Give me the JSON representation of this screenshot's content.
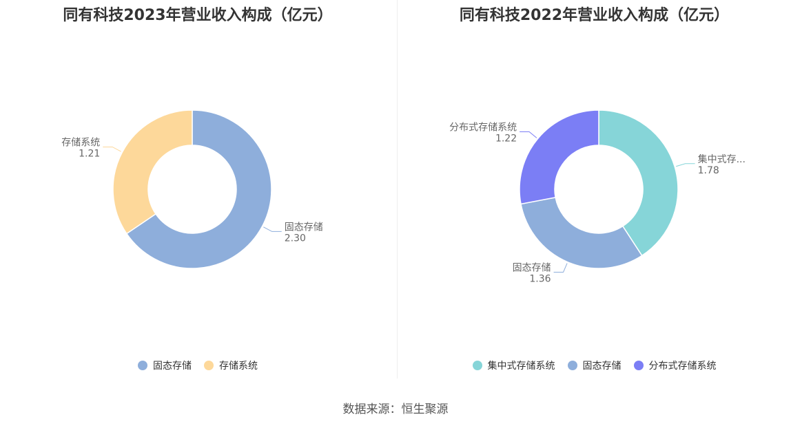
{
  "chart_data": [
    {
      "type": "pie",
      "donut": true,
      "title": "同有科技2023年营业收入构成（亿元）",
      "series": [
        {
          "name": "固态存储",
          "value": 2.3,
          "value_label": "2.30",
          "label": "固态存储",
          "color": "#8eaedb"
        },
        {
          "name": "存储系统",
          "value": 1.21,
          "value_label": "1.21",
          "label": "存储系统",
          "color": "#fdd89a"
        }
      ],
      "legend": [
        "固态存储",
        "存储系统"
      ],
      "legend_position": "bottom"
    },
    {
      "type": "pie",
      "donut": true,
      "title": "同有科技2022年营业收入构成（亿元）",
      "series": [
        {
          "name": "集中式存储系统",
          "value": 1.78,
          "value_label": "1.78",
          "label": "集中式存...",
          "color": "#86d5d8"
        },
        {
          "name": "固态存储",
          "value": 1.36,
          "value_label": "1.36",
          "label": "固态存储",
          "color": "#8eaedb"
        },
        {
          "name": "分布式存储系统",
          "value": 1.22,
          "value_label": "1.22",
          "label": "分布式存储系统",
          "color": "#7b7ef5"
        }
      ],
      "legend": [
        "集中式存储系统",
        "固态存储",
        "分布式存储系统"
      ],
      "legend_position": "bottom"
    }
  ],
  "source": "数据来源：恒生聚源"
}
